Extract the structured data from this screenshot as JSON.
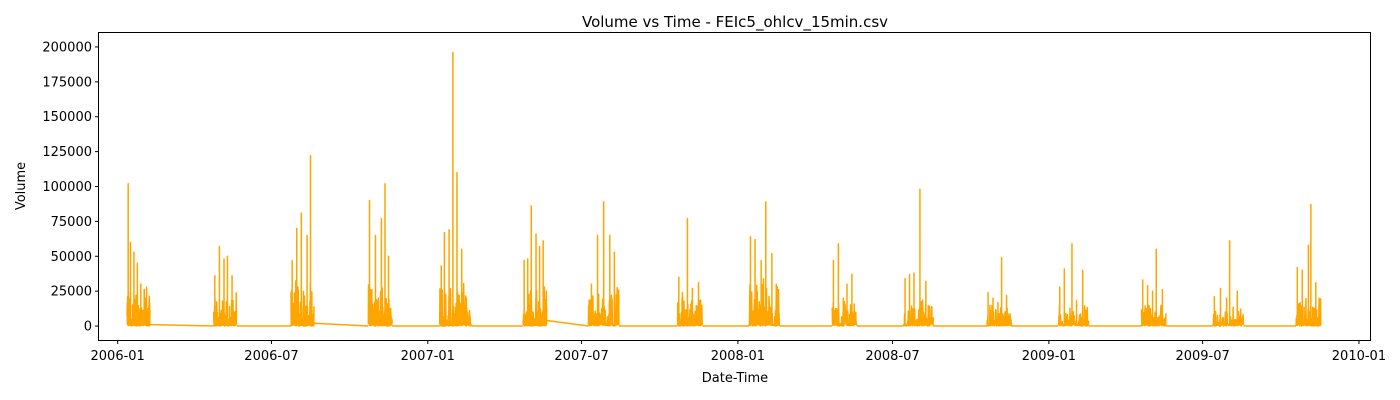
{
  "chart_data": {
    "type": "line",
    "title": "Volume vs Time - FEIc5_ohlcv_15min.csv",
    "xlabel": "Date-Time",
    "ylabel": "Volume",
    "xlim": [
      "2005-12-10",
      "2010-01-14"
    ],
    "ylim": [
      -10000,
      210000
    ],
    "grid": false,
    "color": "#ffa500",
    "x_ticks": [
      {
        "date": "2006-01-01",
        "label": "2006-01"
      },
      {
        "date": "2006-07-01",
        "label": "2006-07"
      },
      {
        "date": "2007-01-01",
        "label": "2007-01"
      },
      {
        "date": "2007-07-01",
        "label": "2007-07"
      },
      {
        "date": "2008-01-01",
        "label": "2008-01"
      },
      {
        "date": "2008-07-01",
        "label": "2008-07"
      },
      {
        "date": "2009-01-01",
        "label": "2009-01"
      },
      {
        "date": "2009-07-01",
        "label": "2009-07"
      },
      {
        "date": "2010-01-01",
        "label": "2010-01"
      }
    ],
    "y_ticks": [
      {
        "value": 0,
        "label": "0"
      },
      {
        "value": 25000,
        "label": "25000"
      },
      {
        "value": 50000,
        "label": "50000"
      },
      {
        "value": 75000,
        "label": "75000"
      },
      {
        "value": 100000,
        "label": "100000"
      },
      {
        "value": 125000,
        "label": "125000"
      },
      {
        "value": 150000,
        "label": "150000"
      },
      {
        "value": 175000,
        "label": "175000"
      },
      {
        "value": 200000,
        "label": "200000"
      }
    ],
    "series": [
      {
        "bursts": [
          {
            "start": "2006-01-12",
            "end": "2006-02-08",
            "base": 24000,
            "peaks": [
              [
                0.05,
                102000
              ],
              [
                0.15,
                60000
              ],
              [
                0.3,
                53000
              ],
              [
                0.45,
                45000
              ],
              [
                0.6,
                30000
              ],
              [
                0.85,
                28000
              ]
            ]
          },
          {
            "start": "2006-04-24",
            "end": "2006-05-21",
            "base": 20000,
            "peaks": [
              [
                0.05,
                36000
              ],
              [
                0.25,
                57000
              ],
              [
                0.45,
                48000
              ],
              [
                0.6,
                50000
              ],
              [
                0.8,
                36000
              ]
            ]
          },
          {
            "start": "2006-07-24",
            "end": "2006-08-20",
            "base": 28000,
            "peaks": [
              [
                0.05,
                47000
              ],
              [
                0.25,
                70000
              ],
              [
                0.45,
                81000
              ],
              [
                0.7,
                65000
              ],
              [
                0.85,
                122000
              ]
            ]
          },
          {
            "start": "2006-10-23",
            "end": "2006-11-20",
            "base": 24000,
            "peaks": [
              [
                0.05,
                90000
              ],
              [
                0.15,
                26000
              ],
              [
                0.3,
                65000
              ],
              [
                0.55,
                77000
              ],
              [
                0.7,
                102000
              ],
              [
                0.85,
                50000
              ]
            ]
          },
          {
            "start": "2007-01-15",
            "end": "2007-02-21",
            "base": 26000,
            "peaks": [
              [
                0.05,
                43000
              ],
              [
                0.15,
                67000
              ],
              [
                0.3,
                69000
              ],
              [
                0.42,
                196000
              ],
              [
                0.55,
                110000
              ],
              [
                0.7,
                55000
              ],
              [
                0.85,
                20000
              ]
            ]
          },
          {
            "start": "2007-04-23",
            "end": "2007-05-21",
            "base": 24000,
            "peaks": [
              [
                0.05,
                47000
              ],
              [
                0.2,
                48000
              ],
              [
                0.35,
                86000
              ],
              [
                0.55,
                66000
              ],
              [
                0.7,
                57000
              ],
              [
                0.85,
                61000
              ]
            ]
          },
          {
            "start": "2007-07-09",
            "end": "2007-08-14",
            "base": 26000,
            "peaks": [
              [
                0.1,
                30000
              ],
              [
                0.3,
                65000
              ],
              [
                0.5,
                89000
              ],
              [
                0.7,
                65000
              ],
              [
                0.85,
                53000
              ]
            ]
          },
          {
            "start": "2007-10-22",
            "end": "2007-11-20",
            "base": 18000,
            "peaks": [
              [
                0.05,
                35000
              ],
              [
                0.2,
                24000
              ],
              [
                0.4,
                77000
              ],
              [
                0.6,
                27000
              ],
              [
                0.85,
                31000
              ]
            ]
          },
          {
            "start": "2008-01-14",
            "end": "2008-02-19",
            "base": 28000,
            "peaks": [
              [
                0.05,
                64000
              ],
              [
                0.2,
                62000
              ],
              [
                0.4,
                47000
              ],
              [
                0.55,
                89000
              ],
              [
                0.75,
                52000
              ],
              [
                0.9,
                25000
              ]
            ]
          },
          {
            "start": "2008-04-21",
            "end": "2008-05-20",
            "base": 18000,
            "peaks": [
              [
                0.05,
                47000
              ],
              [
                0.25,
                59000
              ],
              [
                0.45,
                20000
              ],
              [
                0.6,
                30000
              ],
              [
                0.8,
                37000
              ]
            ]
          },
          {
            "start": "2008-07-14",
            "end": "2008-08-18",
            "base": 18000,
            "peaks": [
              [
                0.05,
                34000
              ],
              [
                0.2,
                37000
              ],
              [
                0.35,
                38000
              ],
              [
                0.55,
                98000
              ],
              [
                0.75,
                32000
              ]
            ]
          },
          {
            "start": "2008-10-20",
            "end": "2008-11-18",
            "base": 12000,
            "peaks": [
              [
                0.05,
                24000
              ],
              [
                0.25,
                20000
              ],
              [
                0.45,
                17000
              ],
              [
                0.6,
                49000
              ],
              [
                0.8,
                22000
              ]
            ]
          },
          {
            "start": "2009-01-12",
            "end": "2009-02-17",
            "base": 14000,
            "peaks": [
              [
                0.05,
                28000
              ],
              [
                0.2,
                41000
              ],
              [
                0.45,
                59000
              ],
              [
                0.6,
                18000
              ],
              [
                0.8,
                40000
              ]
            ]
          },
          {
            "start": "2009-04-20",
            "end": "2009-05-19",
            "base": 14000,
            "peaks": [
              [
                0.05,
                33000
              ],
              [
                0.25,
                29000
              ],
              [
                0.45,
                25000
              ],
              [
                0.6,
                55000
              ],
              [
                0.85,
                26000
              ]
            ]
          },
          {
            "start": "2009-07-13",
            "end": "2009-08-18",
            "base": 12000,
            "peaks": [
              [
                0.05,
                21000
              ],
              [
                0.25,
                27000
              ],
              [
                0.45,
                20000
              ],
              [
                0.55,
                61000
              ],
              [
                0.8,
                25000
              ]
            ]
          },
          {
            "start": "2009-10-19",
            "end": "2009-11-17",
            "base": 20000,
            "peaks": [
              [
                0.05,
                42000
              ],
              [
                0.25,
                40000
              ],
              [
                0.5,
                58000
              ],
              [
                0.6,
                87000
              ],
              [
                0.8,
                31000
              ]
            ]
          }
        ],
        "gap_points": [
          [
            "2006-02-08",
            1000
          ],
          [
            "2006-04-24",
            0
          ],
          [
            "2006-05-21",
            0
          ],
          [
            "2006-07-24",
            0
          ],
          [
            "2006-08-20",
            2000
          ],
          [
            "2006-10-23",
            0
          ],
          [
            "2006-11-20",
            0
          ],
          [
            "2007-01-15",
            0
          ],
          [
            "2007-02-21",
            0
          ],
          [
            "2007-04-23",
            0
          ],
          [
            "2007-05-21",
            4000
          ],
          [
            "2007-07-09",
            0
          ],
          [
            "2007-08-14",
            0
          ],
          [
            "2007-10-22",
            0
          ],
          [
            "2007-11-20",
            0
          ],
          [
            "2008-01-14",
            0
          ],
          [
            "2008-02-19",
            0
          ],
          [
            "2008-04-21",
            0
          ],
          [
            "2008-05-20",
            0
          ],
          [
            "2008-07-14",
            0
          ],
          [
            "2008-08-18",
            0
          ],
          [
            "2008-10-20",
            0
          ],
          [
            "2008-11-18",
            0
          ],
          [
            "2009-01-12",
            0
          ],
          [
            "2009-02-17",
            0
          ],
          [
            "2009-04-20",
            0
          ],
          [
            "2009-05-19",
            0
          ],
          [
            "2009-07-13",
            0
          ],
          [
            "2009-08-18",
            0
          ],
          [
            "2009-10-19",
            0
          ]
        ]
      }
    ]
  }
}
